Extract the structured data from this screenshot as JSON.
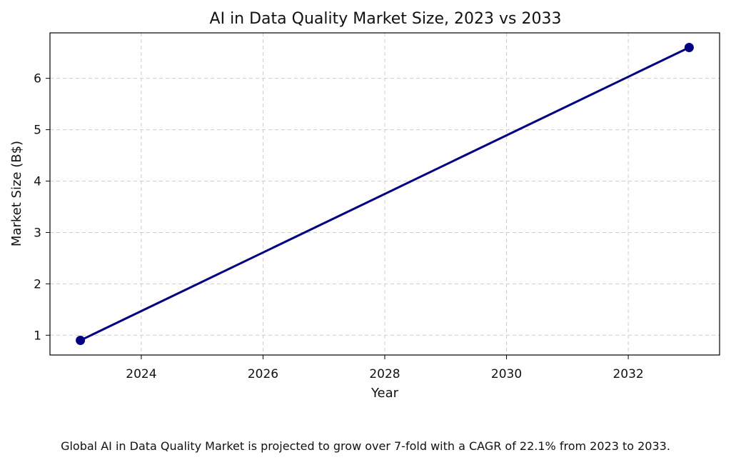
{
  "chart_data": {
    "type": "line",
    "title": "AI in Data Quality Market Size, 2023 vs 2033",
    "xlabel": "Year",
    "ylabel": "Market Size (B$)",
    "x": [
      2023,
      2033
    ],
    "series": [
      {
        "values": [
          0.9,
          6.6
        ]
      }
    ],
    "xlim": [
      2022.5,
      2033.5
    ],
    "ylim": [
      0.615,
      6.885
    ],
    "xticks": [
      2024,
      2026,
      2028,
      2030,
      2032
    ],
    "yticks": [
      1,
      2,
      3,
      4,
      5,
      6
    ],
    "grid": true,
    "line_color": "#000080",
    "marker": "circle"
  },
  "caption": "Global AI in Data Quality Market is projected to grow over 7-fold with a CAGR of 22.1% from 2023 to 2033."
}
